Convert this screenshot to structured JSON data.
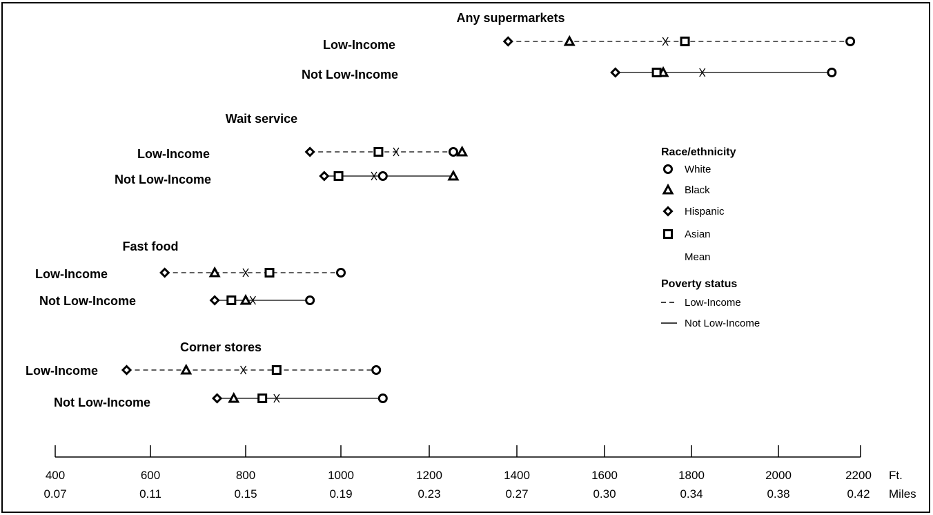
{
  "chart_data": {
    "type": "dot-plot",
    "x_unit_primary": "Ft.",
    "x_unit_secondary": "Miles",
    "xlim": [
      400,
      2200
    ],
    "ticks_ft": [
      "400",
      "600",
      "800",
      "1000",
      "1200",
      "1400",
      "1600",
      "1800",
      "2000",
      "2200"
    ],
    "ticks_miles": [
      "0.07",
      "0.11",
      "0.15",
      "0.19",
      "0.23",
      "0.27",
      "0.30",
      "0.34",
      "0.38",
      "0.42"
    ],
    "groups": [
      {
        "title": "Any supermarkets",
        "rows": [
          {
            "label": "Low-Income",
            "status": "low",
            "white": 2175,
            "black": 1520,
            "hispanic": 1380,
            "asian": 1785,
            "mean": 1740
          },
          {
            "label": "Not Low-Income",
            "status": "not",
            "white": 2130,
            "black": 1735,
            "hispanic": 1625,
            "asian": 1720,
            "mean": 1825
          }
        ]
      },
      {
        "title": "Wait service",
        "rows": [
          {
            "label": "Low-Income",
            "status": "low",
            "white": 1255,
            "black": 1275,
            "hispanic": 935,
            "asian": 1085,
            "mean": 1125
          },
          {
            "label": "Not Low-Income",
            "status": "not",
            "white": 1095,
            "black": 1255,
            "hispanic": 965,
            "asian": 995,
            "mean": 1075
          }
        ]
      },
      {
        "title": "Fast food",
        "rows": [
          {
            "label": "Low-Income",
            "status": "low",
            "white": 1000,
            "black": 735,
            "hispanic": 630,
            "asian": 850,
            "mean": 800
          },
          {
            "label": "Not Low-Income",
            "status": "not",
            "white": 935,
            "black": 800,
            "hispanic": 735,
            "asian": 770,
            "mean": 815
          }
        ]
      },
      {
        "title": "Corner stores",
        "rows": [
          {
            "label": "Low-Income",
            "status": "low",
            "white": 1080,
            "black": 675,
            "hispanic": 550,
            "asian": 865,
            "mean": 795
          },
          {
            "label": "Not Low-Income",
            "status": "not",
            "white": 1095,
            "black": 775,
            "hispanic": 740,
            "asian": 835,
            "mean": 865
          }
        ]
      }
    ],
    "legend": {
      "race_title": "Race/ethnicity",
      "race_items": [
        {
          "label": "White",
          "marker": "circle"
        },
        {
          "label": "Black",
          "marker": "triangle"
        },
        {
          "label": "Hispanic",
          "marker": "diamond"
        },
        {
          "label": "Asian",
          "marker": "square"
        },
        {
          "label": "Mean",
          "marker": "none"
        }
      ],
      "poverty_title": "Poverty status",
      "poverty_items": [
        {
          "label": "Low-Income",
          "line": "dashed"
        },
        {
          "label": "Not Low-Income",
          "line": "solid"
        }
      ]
    }
  }
}
